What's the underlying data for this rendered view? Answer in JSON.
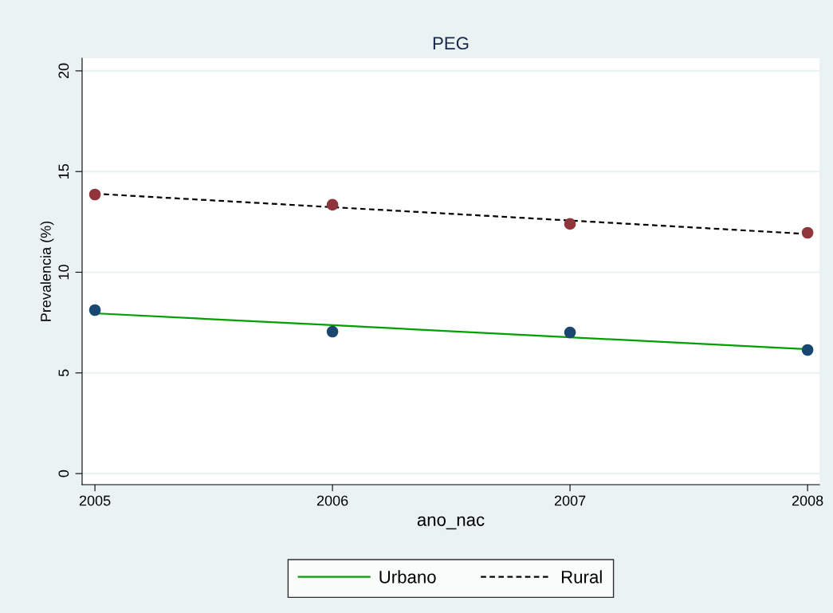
{
  "chart_data": {
    "type": "line",
    "title": "PEG",
    "xlabel": "ano_nac",
    "ylabel": "Prevalencia (%)",
    "x": [
      2005,
      2006,
      2007,
      2008
    ],
    "series": [
      {
        "type": "scatter",
        "color": "#1a476f",
        "marker": "circle",
        "values": [
          8.12,
          7.05,
          7.01,
          6.14
        ]
      },
      {
        "type": "scatter",
        "color": "#90353b",
        "marker": "circle",
        "values": [
          13.86,
          13.35,
          12.4,
          11.96
        ]
      },
      {
        "name": "Urbano",
        "color": "#00a000",
        "line_style": "solid",
        "marker": "none",
        "values": [
          7.96,
          7.37,
          6.77,
          6.18
        ]
      },
      {
        "name": "Rural",
        "color": "#000000",
        "line_style": "dashed",
        "marker": "none",
        "values": [
          13.9,
          13.23,
          12.57,
          11.9
        ]
      }
    ],
    "xlim": [
      2004.946,
      2008.05
    ],
    "xticks": [
      2005,
      2006,
      2007,
      2008
    ],
    "ylim": [
      -0.55,
      20.63
    ],
    "yticks": [
      0,
      5,
      10,
      15,
      20
    ],
    "grid": "y",
    "legend": "bottom"
  }
}
